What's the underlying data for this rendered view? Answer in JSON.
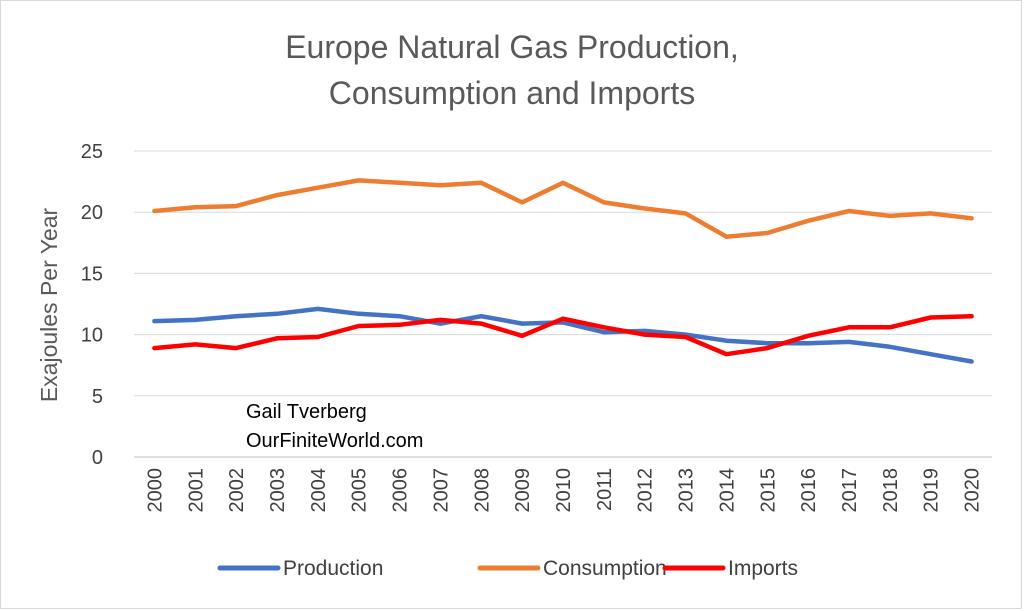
{
  "chart_data": {
    "type": "line",
    "title": [
      "Europe Natural Gas Production,",
      "Consumption and Imports"
    ],
    "ylabel": "Exajoules Per Year",
    "xlabel": "",
    "ylim": [
      0,
      25
    ],
    "yticks": [
      0,
      5,
      10,
      15,
      20,
      25
    ],
    "grid": true,
    "legend_position": "bottom",
    "x": [
      "2000",
      "2001",
      "2002",
      "2003",
      "2004",
      "2005",
      "2006",
      "2007",
      "2008",
      "2009",
      "2010",
      "2011",
      "2012",
      "2013",
      "2014",
      "2015",
      "2016",
      "2017",
      "2018",
      "2019",
      "2020"
    ],
    "series": [
      {
        "name": "Production",
        "color": "#4472C4",
        "values": [
          11.1,
          11.2,
          11.5,
          11.7,
          12.1,
          11.7,
          11.5,
          10.9,
          11.5,
          10.9,
          11.0,
          10.2,
          10.3,
          10.0,
          9.5,
          9.3,
          9.3,
          9.4,
          9.0,
          8.4,
          7.8
        ]
      },
      {
        "name": "Consumption",
        "color": "#ED7D31",
        "values": [
          20.1,
          20.4,
          20.5,
          21.4,
          22.0,
          22.6,
          22.4,
          22.2,
          22.4,
          20.8,
          22.4,
          20.8,
          20.3,
          19.9,
          18.0,
          18.3,
          19.3,
          20.1,
          19.7,
          19.9,
          19.5
        ]
      },
      {
        "name": "Imports",
        "color": "#FF0000",
        "values": [
          8.9,
          9.2,
          8.9,
          9.7,
          9.8,
          10.7,
          10.8,
          11.2,
          10.9,
          9.9,
          11.3,
          10.6,
          10.0,
          9.8,
          8.4,
          8.9,
          9.9,
          10.6,
          10.6,
          11.4,
          11.5
        ]
      }
    ],
    "annotations": [
      "Gail Tverberg",
      "OurFiniteWorld.com"
    ]
  }
}
